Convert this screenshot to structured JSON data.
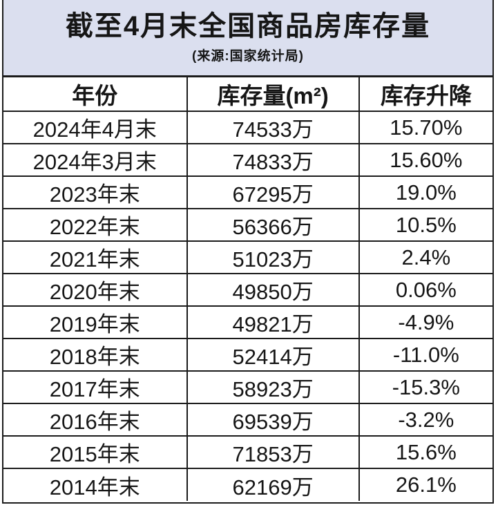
{
  "header": {
    "title": "截至4月末全国商品房库存量",
    "subtitle": "(来源:国家统计局)"
  },
  "table": {
    "columns": [
      "年份",
      "库存量(m²)",
      "库存升降"
    ],
    "rows": [
      {
        "year": "2024年4月末",
        "inventory": "74533万",
        "change": "15.70%"
      },
      {
        "year": "2024年3月末",
        "inventory": "74833万",
        "change": "15.60%"
      },
      {
        "year": "2023年末",
        "inventory": "67295万",
        "change": "19.0%"
      },
      {
        "year": "2022年末",
        "inventory": "56366万",
        "change": "10.5%"
      },
      {
        "year": "2021年末",
        "inventory": "51023万",
        "change": "2.4%"
      },
      {
        "year": "2020年末",
        "inventory": "49850万",
        "change": "0.06%"
      },
      {
        "year": "2019年末",
        "inventory": "49821万",
        "change": "-4.9%"
      },
      {
        "year": "2018年末",
        "inventory": "52414万",
        "change": "-11.0%"
      },
      {
        "year": "2017年末",
        "inventory": "58923万",
        "change": "-15.3%"
      },
      {
        "year": "2016年末",
        "inventory": "69539万",
        "change": "-3.2%"
      },
      {
        "year": "2015年末",
        "inventory": "71853万",
        "change": "15.6%"
      },
      {
        "year": "2014年末",
        "inventory": "62169万",
        "change": "26.1%"
      }
    ]
  },
  "colors": {
    "title_background": "#dbdfef",
    "grid_border": "#1b1b1b",
    "row_background": "#ffffff",
    "text": "#161616"
  },
  "chart_data": {
    "type": "table",
    "title": "截至4月末全国商品房库存量",
    "subtitle": "(来源:国家统计局)",
    "source": "国家统计局",
    "columns": [
      "年份",
      "库存量(m²)",
      "库存升降"
    ],
    "rows": [
      [
        "2024年4月末",
        "74533万",
        "15.70%"
      ],
      [
        "2024年3月末",
        "74833万",
        "15.60%"
      ],
      [
        "2023年末",
        "67295万",
        "19.0%"
      ],
      [
        "2022年末",
        "56366万",
        "10.5%"
      ],
      [
        "2021年末",
        "51023万",
        "2.4%"
      ],
      [
        "2020年末",
        "49850万",
        "0.06%"
      ],
      [
        "2019年末",
        "49821万",
        "-4.9%"
      ],
      [
        "2018年末",
        "52414万",
        "-11.0%"
      ],
      [
        "2017年末",
        "58923万",
        "-15.3%"
      ],
      [
        "2016年末",
        "69539万",
        "-3.2%"
      ],
      [
        "2015年末",
        "71853万",
        "15.6%"
      ],
      [
        "2014年末",
        "62169万",
        "26.1%"
      ]
    ],
    "inventory_values_wan_m2": [
      74533,
      74833,
      67295,
      56366,
      51023,
      49850,
      49821,
      52414,
      58923,
      69539,
      71853,
      62169
    ],
    "change_percent": [
      15.7,
      15.6,
      19.0,
      10.5,
      2.4,
      0.06,
      -4.9,
      -11.0,
      -15.3,
      -3.2,
      15.6,
      26.1
    ]
  }
}
